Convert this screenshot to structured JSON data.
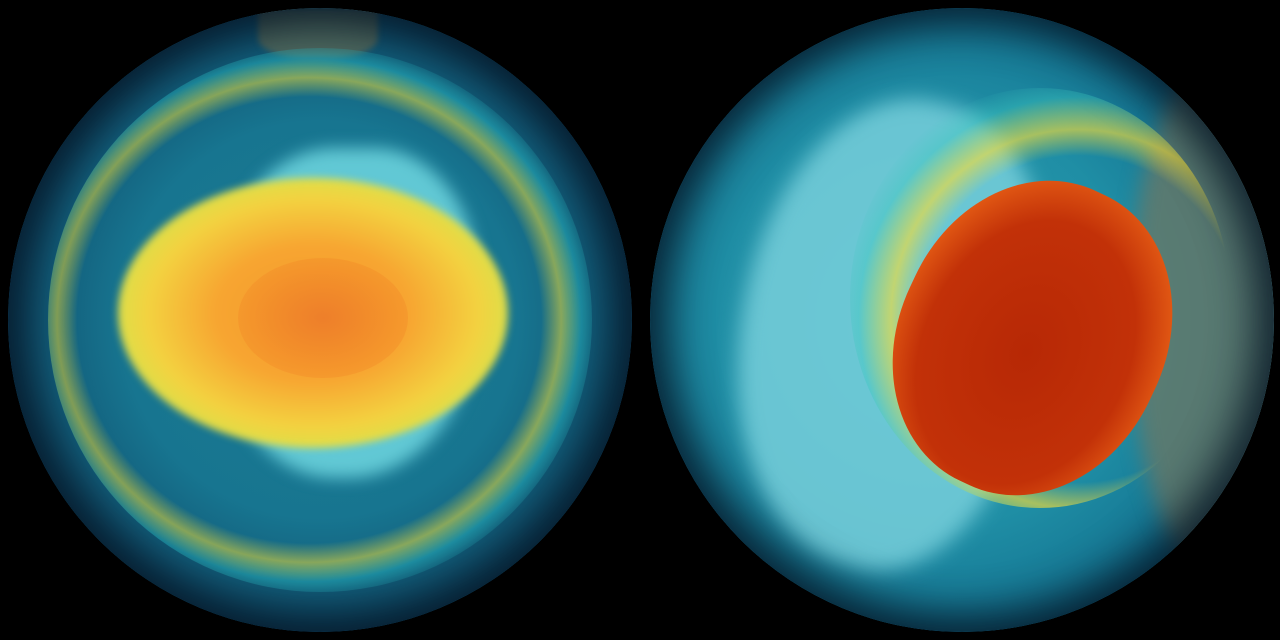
{
  "image": {
    "globes": [
      {
        "name": "left-globe",
        "colors": {
          "core": "#ee7f2a",
          "halo": "#f3d240",
          "ocean": "#177590"
        }
      },
      {
        "name": "right-globe",
        "colors": {
          "core": "#b72805",
          "halo": "#f2c43a",
          "ocean": "#1f8ea5"
        }
      }
    ],
    "background": "#000000"
  }
}
